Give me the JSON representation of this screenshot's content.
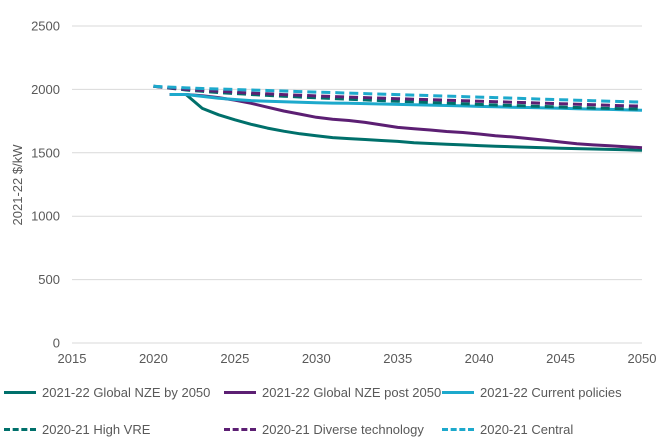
{
  "chart_data": {
    "type": "line",
    "title": "",
    "xlabel": "",
    "ylabel": "2021-22 $/kW",
    "xlim": [
      2015,
      2050
    ],
    "ylim": [
      0,
      2500
    ],
    "x_ticks": [
      2015,
      2020,
      2025,
      2030,
      2035,
      2040,
      2045,
      2050
    ],
    "y_ticks": [
      0,
      500,
      1000,
      1500,
      2000,
      2500
    ],
    "grid": "horizontal",
    "legend_position": "bottom",
    "series": [
      {
        "name": "2021-22 Global NZE by 2050",
        "color": "#00706b",
        "style": "solid",
        "x": [
          2021,
          2022,
          2023,
          2024,
          2025,
          2026,
          2027,
          2028,
          2029,
          2030,
          2031,
          2032,
          2033,
          2034,
          2035,
          2036,
          2037,
          2038,
          2039,
          2040,
          2041,
          2042,
          2043,
          2044,
          2045,
          2046,
          2047,
          2048,
          2049,
          2050
        ],
        "y": [
          1960,
          1960,
          1850,
          1800,
          1760,
          1725,
          1695,
          1670,
          1650,
          1635,
          1620,
          1612,
          1605,
          1597,
          1590,
          1580,
          1573,
          1567,
          1562,
          1557,
          1552,
          1548,
          1544,
          1540,
          1536,
          1533,
          1530,
          1527,
          1524,
          1520
        ]
      },
      {
        "name": "2021-22 Global NZE post 2050",
        "color": "#5c1f73",
        "style": "solid",
        "x": [
          2021,
          2022,
          2023,
          2024,
          2025,
          2026,
          2027,
          2028,
          2029,
          2030,
          2031,
          2032,
          2033,
          2034,
          2035,
          2036,
          2037,
          2038,
          2039,
          2040,
          2041,
          2042,
          2043,
          2044,
          2045,
          2046,
          2047,
          2048,
          2049,
          2050
        ],
        "y": [
          1960,
          1960,
          1950,
          1935,
          1915,
          1890,
          1860,
          1830,
          1805,
          1780,
          1765,
          1755,
          1740,
          1720,
          1700,
          1690,
          1680,
          1668,
          1660,
          1648,
          1635,
          1625,
          1613,
          1600,
          1585,
          1572,
          1562,
          1555,
          1548,
          1540
        ]
      },
      {
        "name": "2021-22 Current policies",
        "color": "#1da9cc",
        "style": "solid",
        "x": [
          2021,
          2022,
          2023,
          2024,
          2025,
          2026,
          2027,
          2028,
          2029,
          2030,
          2031,
          2032,
          2033,
          2034,
          2035,
          2036,
          2037,
          2038,
          2039,
          2040,
          2041,
          2042,
          2043,
          2044,
          2045,
          2046,
          2047,
          2048,
          2049,
          2050
        ],
        "y": [
          1960,
          1960,
          1945,
          1930,
          1920,
          1912,
          1906,
          1902,
          1898,
          1895,
          1892,
          1890,
          1888,
          1885,
          1882,
          1879,
          1876,
          1873,
          1870,
          1866,
          1863,
          1860,
          1857,
          1854,
          1851,
          1848,
          1845,
          1842,
          1838,
          1835
        ]
      },
      {
        "name": "2020-21 High VRE",
        "color": "#00706b",
        "style": "dashed",
        "x": [
          2020,
          2021,
          2022,
          2023,
          2024,
          2025,
          2026,
          2027,
          2028,
          2029,
          2030,
          2031,
          2032,
          2033,
          2034,
          2035,
          2036,
          2037,
          2038,
          2039,
          2040,
          2041,
          2042,
          2043,
          2044,
          2045,
          2046,
          2047,
          2048,
          2049,
          2050
        ],
        "y": [
          2025,
          2010,
          1995,
          1985,
          1975,
          1968,
          1960,
          1953,
          1946,
          1940,
          1934,
          1928,
          1922,
          1917,
          1912,
          1907,
          1902,
          1897,
          1892,
          1887,
          1882,
          1877,
          1873,
          1869,
          1865,
          1861,
          1857,
          1853,
          1850,
          1847,
          1845
        ]
      },
      {
        "name": "2020-21 Diverse technology",
        "color": "#5c1f73",
        "style": "dashed",
        "x": [
          2020,
          2021,
          2022,
          2023,
          2024,
          2025,
          2026,
          2027,
          2028,
          2029,
          2030,
          2031,
          2032,
          2033,
          2034,
          2035,
          2036,
          2037,
          2038,
          2039,
          2040,
          2041,
          2042,
          2043,
          2044,
          2045,
          2046,
          2047,
          2048,
          2049,
          2050
        ],
        "y": [
          2025,
          2012,
          2000,
          1992,
          1985,
          1978,
          1971,
          1965,
          1959,
          1954,
          1949,
          1944,
          1939,
          1935,
          1931,
          1927,
          1923,
          1919,
          1915,
          1911,
          1907,
          1903,
          1899,
          1895,
          1891,
          1887,
          1883,
          1879,
          1875,
          1871,
          1868
        ]
      },
      {
        "name": "2020-21 Central",
        "color": "#1da9cc",
        "style": "dashed",
        "x": [
          2020,
          2021,
          2022,
          2023,
          2024,
          2025,
          2026,
          2027,
          2028,
          2029,
          2030,
          2031,
          2032,
          2033,
          2034,
          2035,
          2036,
          2037,
          2038,
          2039,
          2040,
          2041,
          2042,
          2043,
          2044,
          2045,
          2046,
          2047,
          2048,
          2049,
          2050
        ],
        "y": [
          2025,
          2018,
          2012,
          2007,
          2003,
          1999,
          1995,
          1991,
          1987,
          1983,
          1979,
          1975,
          1971,
          1967,
          1963,
          1959,
          1955,
          1951,
          1947,
          1943,
          1939,
          1935,
          1931,
          1927,
          1923,
          1919,
          1915,
          1911,
          1907,
          1903,
          1900
        ]
      }
    ]
  }
}
